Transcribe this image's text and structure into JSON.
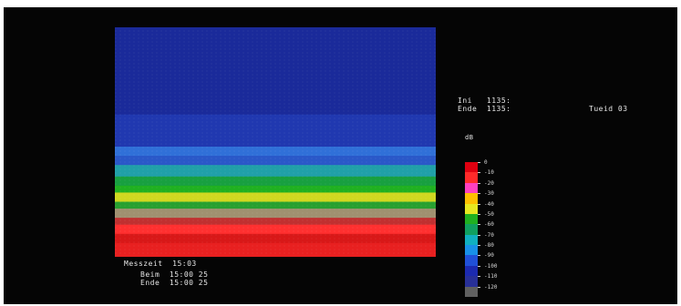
{
  "chart_data": {
    "type": "heatmap",
    "title": "",
    "xlabel": "",
    "ylabel": "",
    "colorbar_unit": "dB",
    "colorbar": [
      {
        "label": "0",
        "color": "#e00010"
      },
      {
        "label": "-10",
        "color": "#ff2a2a"
      },
      {
        "label": "-20",
        "color": "#ff40c0"
      },
      {
        "label": "-30",
        "color": "#ffc000"
      },
      {
        "label": "-40",
        "color": "#e8e820"
      },
      {
        "label": "-50",
        "color": "#20b020"
      },
      {
        "label": "-60",
        "color": "#10a060"
      },
      {
        "label": "-70",
        "color": "#10b0c0"
      },
      {
        "label": "-80",
        "color": "#1890e8"
      },
      {
        "label": "-90",
        "color": "#2050d8"
      },
      {
        "label": "-100",
        "color": "#1c2ab0"
      },
      {
        "label": "-110",
        "color": "#283098"
      },
      {
        "label": "-120",
        "color": "#606060"
      }
    ],
    "bands": [
      {
        "from": 0.0,
        "to": 0.38,
        "color": "#1a2a9a"
      },
      {
        "from": 0.38,
        "to": 0.52,
        "color": "#2038b0"
      },
      {
        "from": 0.52,
        "to": 0.56,
        "color": "#3070d8"
      },
      {
        "from": 0.56,
        "to": 0.6,
        "color": "#2a58c8"
      },
      {
        "from": 0.6,
        "to": 0.65,
        "color": "#20a0a8"
      },
      {
        "from": 0.65,
        "to": 0.69,
        "color": "#18a040"
      },
      {
        "from": 0.69,
        "to": 0.72,
        "color": "#20b020"
      },
      {
        "from": 0.72,
        "to": 0.76,
        "color": "#d0d820"
      },
      {
        "from": 0.76,
        "to": 0.79,
        "color": "#28a030"
      },
      {
        "from": 0.79,
        "to": 0.83,
        "color": "#a09070"
      },
      {
        "from": 0.83,
        "to": 0.86,
        "color": "#c03030"
      },
      {
        "from": 0.86,
        "to": 0.9,
        "color": "#ff3030"
      },
      {
        "from": 0.9,
        "to": 0.94,
        "color": "#d81818"
      },
      {
        "from": 0.94,
        "to": 1.0,
        "color": "#e82020"
      }
    ]
  },
  "readout": {
    "start_line": "Ini   1135:",
    "end_line": "Ende  1135:",
    "right_text": "Tueid 03",
    "bottom_line": "Messzeit  15:03",
    "bottom_detail1": "Beim  15:00 25",
    "bottom_detail2": "Ende  15:00 25"
  }
}
